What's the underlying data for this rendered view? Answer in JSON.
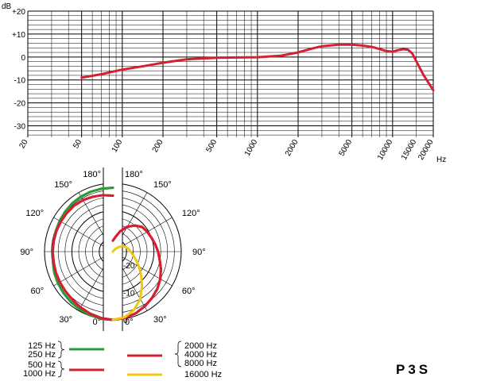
{
  "chart_data": [
    {
      "type": "line",
      "y_unit": "dB",
      "x_unit": "Hz",
      "x_scale": "log",
      "xlim": [
        20,
        20000
      ],
      "ylim": [
        -35,
        20
      ],
      "grid": true,
      "y_tick_labels": [
        "+20",
        "+10",
        "0",
        "-10",
        "-20",
        "-30"
      ],
      "y_tick_values": [
        20,
        10,
        0,
        -10,
        -20,
        -30
      ],
      "x_tick_labels": [
        "20",
        "50",
        "100",
        "200",
        "500",
        "1000",
        "2000",
        "5000",
        "10000",
        "15000",
        "20000"
      ],
      "x_tick_values": [
        20,
        50,
        100,
        200,
        500,
        1000,
        2000,
        5000,
        10000,
        15000,
        20000
      ],
      "color": "#d42030",
      "series": [
        {
          "x": [
            50,
            70,
            100,
            150,
            200,
            300,
            500,
            700,
            1000,
            1500,
            2000,
            2500,
            3000,
            4000,
            5000,
            6000,
            7000,
            8000,
            9000,
            10000,
            11000,
            12000,
            13000,
            14000,
            15000,
            17000,
            20000
          ],
          "y": [
            -9,
            -7.5,
            -5.5,
            -3.8,
            -2.5,
            -1,
            -0.3,
            -0.2,
            -0.1,
            0.6,
            2,
            3.6,
            4.7,
            5.4,
            5.4,
            5,
            4.4,
            3.5,
            2.6,
            2.3,
            3,
            3.4,
            3.2,
            1.5,
            -2,
            -8,
            -14.5
          ]
        }
      ]
    },
    {
      "type": "polar",
      "r_unit": "dB",
      "r_tick_labels": [
        "-20",
        "-10",
        "0"
      ],
      "r_tick_values": [
        -20,
        -10,
        0
      ],
      "r_range": [
        -25,
        0
      ],
      "angle_labels_left": [
        "180°",
        "150°",
        "120°",
        "90°",
        "60°",
        "30°",
        "0°"
      ],
      "angle_labels_right": [
        "180°",
        "150°",
        "120°",
        "90°",
        "60°",
        "30°",
        "0°"
      ],
      "angles": [
        0,
        10,
        20,
        30,
        40,
        50,
        60,
        70,
        80,
        90,
        100,
        110,
        120,
        130,
        140,
        150,
        160,
        170,
        180
      ],
      "series": [
        {
          "name": "125 Hz",
          "side": "left",
          "color": "#2b9a3a",
          "r_db": [
            0,
            0,
            -0.3,
            -0.6,
            -1,
            -1.4,
            -1.8,
            -2.2,
            -2.7,
            -3,
            -3,
            -2.8,
            -2.5,
            -2.2,
            -1.9,
            -1.7,
            -1.6,
            -1.6,
            -1.6
          ]
        },
        {
          "name": "250 Hz",
          "side": "left",
          "color": "#2b9a3a",
          "r_db": [
            0,
            0,
            -0.3,
            -0.6,
            -1,
            -1.4,
            -1.8,
            -2.2,
            -2.7,
            -3,
            -3,
            -2.8,
            -2.5,
            -2.2,
            -1.9,
            -1.7,
            -1.6,
            -1.6,
            -1.6
          ]
        },
        {
          "name": "500 Hz",
          "side": "left",
          "color": "#d42030",
          "r_db": [
            0,
            -0.3,
            -0.8,
            -1.4,
            -2,
            -2.4,
            -2.6,
            -2.8,
            -3,
            -3,
            -3,
            -3,
            -3,
            -3,
            -3,
            -3.2,
            -3.6,
            -4,
            -4.5
          ]
        },
        {
          "name": "1000 Hz",
          "side": "left",
          "color": "#d42030",
          "r_db": [
            0,
            -0.3,
            -0.8,
            -1.4,
            -2,
            -2.4,
            -2.6,
            -2.8,
            -3,
            -3,
            -3,
            -3,
            -3,
            -3,
            -3,
            -3.2,
            -3.6,
            -4,
            -4.5
          ]
        },
        {
          "name": "2000 Hz",
          "side": "right",
          "color": "#d42030",
          "r_db": [
            0,
            -0.3,
            -0.9,
            -1.8,
            -2.8,
            -3.8,
            -5,
            -6.3,
            -7.6,
            -8.5,
            -9.3,
            -10,
            -10.5,
            -11,
            -12.5,
            -14.5,
            -17,
            -19.5,
            -21
          ]
        },
        {
          "name": "4000 Hz",
          "side": "right",
          "color": "#d42030",
          "r_db": [
            0,
            -0.3,
            -0.9,
            -1.8,
            -2.8,
            -3.8,
            -5,
            -6.3,
            -7.6,
            -8.5,
            -9.3,
            -10,
            -10.5,
            -11,
            -12.5,
            -14.5,
            -17,
            -19.5,
            -21
          ]
        },
        {
          "name": "8000 Hz",
          "side": "right",
          "color": "#d42030",
          "r_db": [
            0,
            -0.3,
            -0.9,
            -1.8,
            -2.8,
            -3.8,
            -5,
            -6.3,
            -7.6,
            -8.5,
            -9.3,
            -10,
            -10.5,
            -11,
            -12.5,
            -14.5,
            -17,
            -19.5,
            -21
          ]
        },
        {
          "name": "16000 Hz",
          "side": "right",
          "color": "#f0c814",
          "r_db": [
            0,
            -0.6,
            -2.3,
            -5,
            -8.5,
            -11.5,
            -14,
            -16,
            -17.5,
            -18.5,
            -19.2,
            -20,
            -21,
            -22.5,
            -24,
            -25
          ]
        }
      ]
    }
  ],
  "legend": {
    "left_top": [
      "125 Hz",
      "250 Hz"
    ],
    "left_bottom": [
      "500 Hz",
      "1000 Hz"
    ],
    "right_top": [
      "2000 Hz",
      "4000 Hz",
      "8000 Hz"
    ],
    "right_bottom": [
      "16000 Hz"
    ],
    "green": "#2b9a3a",
    "red": "#d42030",
    "yellow": "#f0c814"
  },
  "model": "P3S"
}
